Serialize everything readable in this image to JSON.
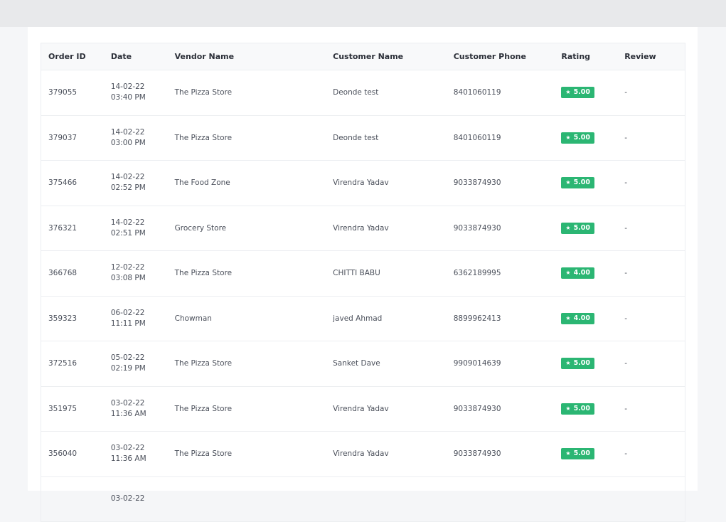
{
  "columns": [
    "Order ID",
    "Date",
    "Vendor Name",
    "Customer Name",
    "Customer Phone",
    "Rating",
    "Review"
  ],
  "rating_icon": "star-icon",
  "rows": [
    {
      "order_id": "379055",
      "date": "14-02-22 03:40 PM",
      "vendor": "The Pizza Store",
      "customer": "Deonde test",
      "phone": "8401060119",
      "rating": "5.00",
      "review": "-"
    },
    {
      "order_id": "379037",
      "date": "14-02-22 03:00 PM",
      "vendor": "The Pizza Store",
      "customer": "Deonde test",
      "phone": "8401060119",
      "rating": "5.00",
      "review": "-"
    },
    {
      "order_id": "375466",
      "date": "14-02-22 02:52 PM",
      "vendor": "The Food Zone",
      "customer": "Virendra Yadav",
      "phone": "9033874930",
      "rating": "5.00",
      "review": "-"
    },
    {
      "order_id": "376321",
      "date": "14-02-22 02:51 PM",
      "vendor": "Grocery Store",
      "customer": "Virendra Yadav",
      "phone": "9033874930",
      "rating": "5.00",
      "review": "-"
    },
    {
      "order_id": "366768",
      "date": "12-02-22 03:08 PM",
      "vendor": "The Pizza Store",
      "customer": "CHITTI BABU",
      "phone": "6362189995",
      "rating": "4.00",
      "review": "-"
    },
    {
      "order_id": "359323",
      "date": "06-02-22 11:11 PM",
      "vendor": "Chowman",
      "customer": "javed Ahmad",
      "phone": "8899962413",
      "rating": "4.00",
      "review": "-"
    },
    {
      "order_id": "372516",
      "date": "05-02-22 02:19 PM",
      "vendor": "The Pizza Store",
      "customer": "Sanket Dave",
      "phone": "9909014639",
      "rating": "5.00",
      "review": "-"
    },
    {
      "order_id": "351975",
      "date": "03-02-22 11:36 AM",
      "vendor": "The Pizza Store",
      "customer": "Virendra Yadav",
      "phone": "9033874930",
      "rating": "5.00",
      "review": "-"
    },
    {
      "order_id": "356040",
      "date": "03-02-22 11:36 AM",
      "vendor": "The Pizza Store",
      "customer": "Virendra Yadav",
      "phone": "9033874930",
      "rating": "5.00",
      "review": "-"
    },
    {
      "order_id": "",
      "date": "03-02-22",
      "vendor": "",
      "customer": "",
      "phone": "",
      "rating": "",
      "review": ""
    }
  ],
  "colors": {
    "rating_badge": "#2bb673",
    "header_bg": "#f8f9fa",
    "page_bg": "#f5f6f8",
    "topbar": "#e8e9eb"
  }
}
